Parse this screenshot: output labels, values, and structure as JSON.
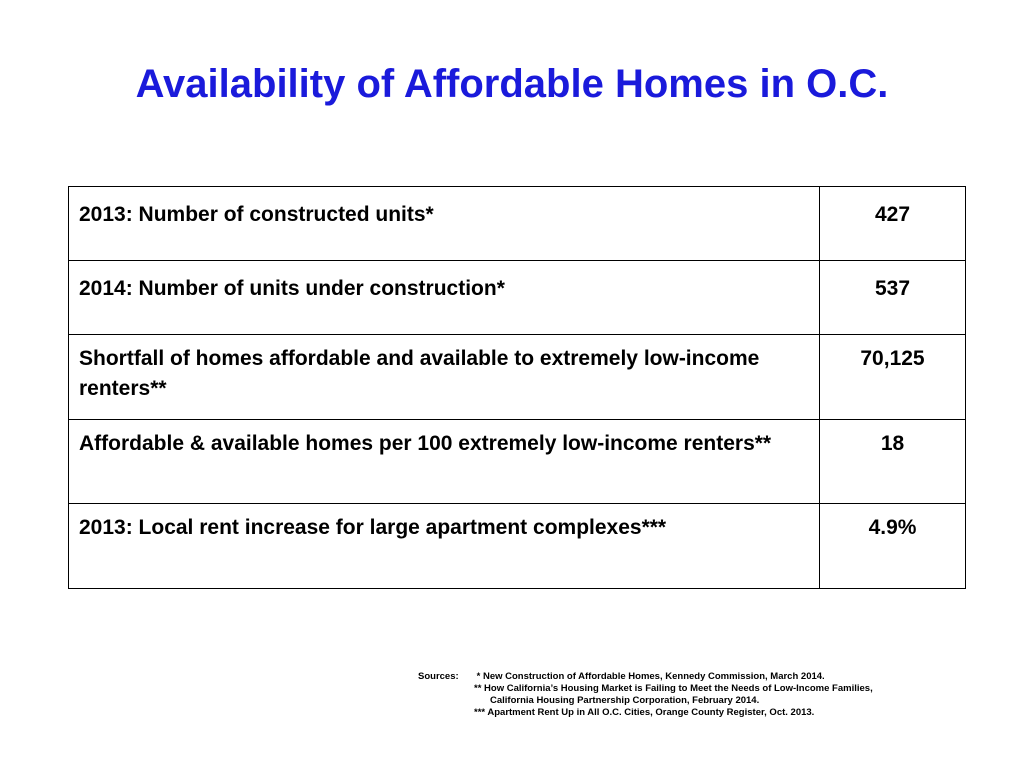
{
  "title": "Availability of Affordable Homes in O.C.",
  "table": {
    "rows": [
      {
        "label": "2013:  Number of constructed units*",
        "value": "427"
      },
      {
        "label": "2014:  Number of units under construction*",
        "value": "537"
      },
      {
        "label": "Shortfall of homes affordable and available to extremely low-income renters**",
        "value": "70,125"
      },
      {
        "label": "Affordable & available homes per 100 extremely low-income renters**",
        "value": "18"
      },
      {
        "label": "2013:  Local rent increase for large apartment complexes***",
        "value": "4.9%"
      }
    ]
  },
  "sources": {
    "prefix": "Sources:",
    "line1": " * New Construction of Affordable Homes, Kennedy Commission, March 2014.",
    "line2": "** How California’s Housing Market is Failing to Meet the Needs of Low-Income Families,",
    "line3": "California Housing Partnership Corporation, February 2014.",
    "line4": "*** Apartment Rent Up in All O.C. Cities, Orange County Register, Oct. 2013."
  }
}
